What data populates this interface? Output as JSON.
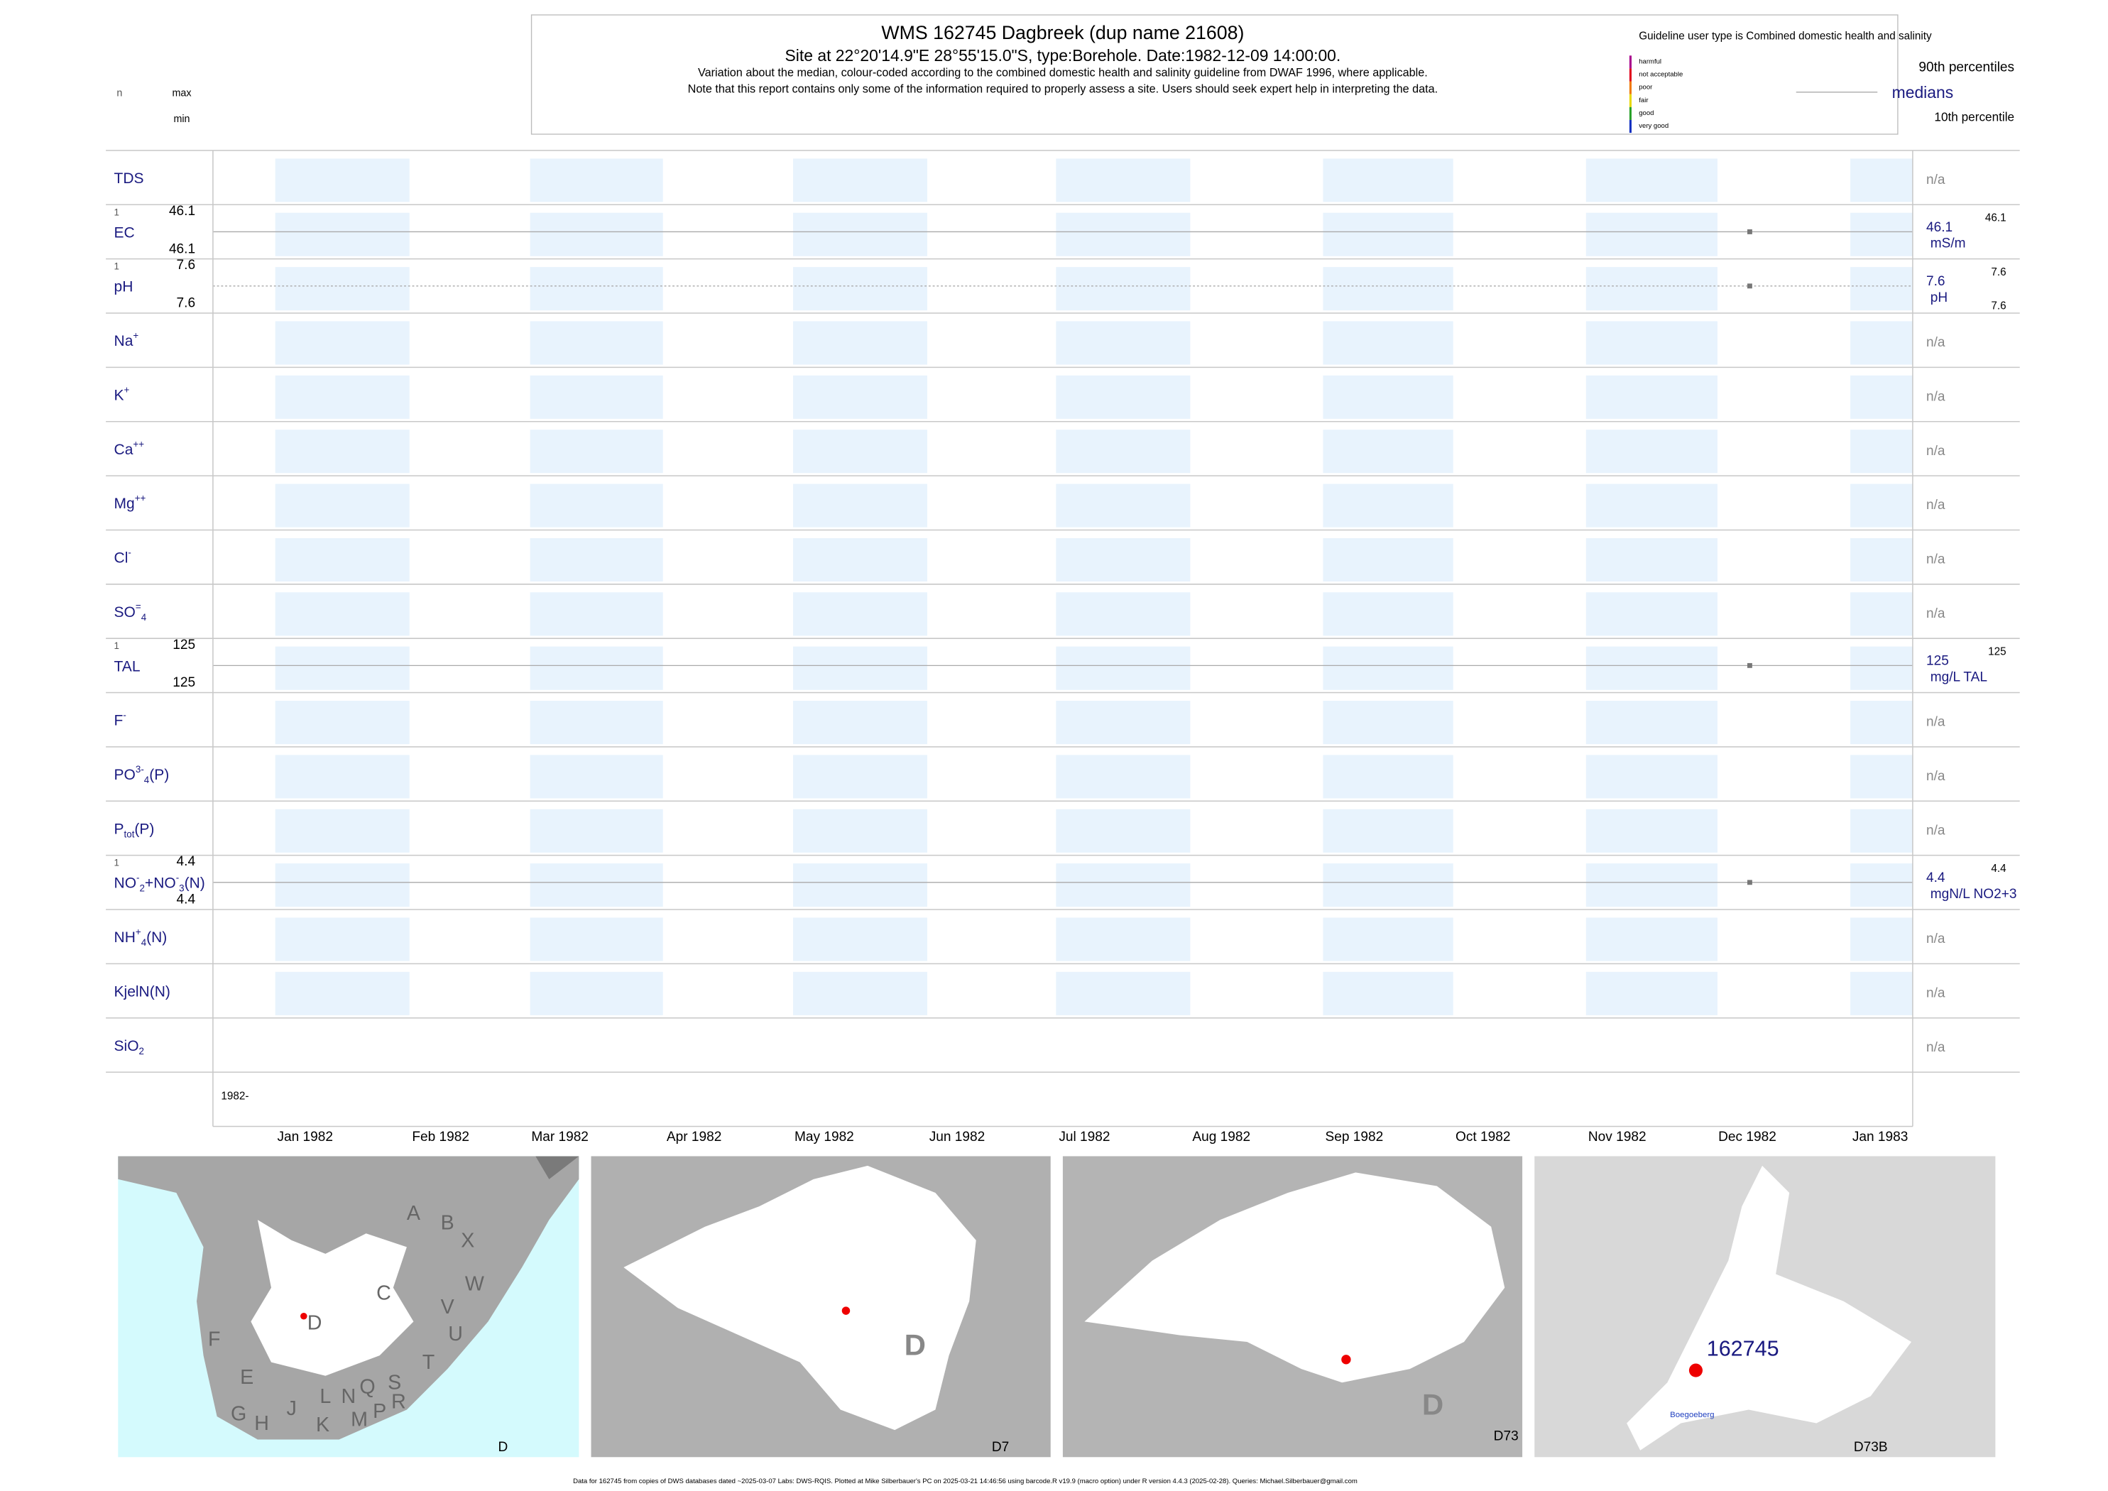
{
  "header": {
    "title": "WMS 162745  Dagbreek (dup name 21608)",
    "subtitle": "Site at 22°20'14.9\"E 28°55'15.0\"S, type:Borehole. Date:1982-12-09 14:00:00.",
    "notes": [
      "Variation about the median,  colour-coded according to the combined domestic health and salinity guideline from DWAF 1996, where applicable.",
      "Note that this report contains only some of the information required to properly assess a site. Users should seek expert help in interpreting the data."
    ]
  },
  "corner": {
    "n": "n",
    "max": "max",
    "min": "min"
  },
  "legend": {
    "guideline": "Guideline user type is Combined domestic health and salinity",
    "classes": [
      {
        "label": "harmful",
        "color": "#a8008c"
      },
      {
        "label": "not acceptable",
        "color": "#e0001b"
      },
      {
        "label": "poor",
        "color": "#f07800"
      },
      {
        "label": "fair",
        "color": "#e8d800"
      },
      {
        "label": "good",
        "color": "#28a028"
      },
      {
        "label": "very good",
        "color": "#1030c0"
      }
    ],
    "p90": "90th percentiles",
    "median": "medians",
    "p10": "10th percentile"
  },
  "rows": [
    {
      "label": [
        {
          "text": "TDS"
        }
      ],
      "na": "n/a"
    },
    {
      "label": [
        {
          "text": "EC"
        }
      ],
      "n": 1,
      "max": 46.1,
      "min": 46.1,
      "median": 46.1,
      "unit": "mS/m",
      "upper": 46.1
    },
    {
      "label": [
        {
          "text": "pH"
        }
      ],
      "n": 1,
      "max": 7.6,
      "min": 7.6,
      "median": 7.6,
      "unit": "pH",
      "upper": 7.6,
      "lower": 7.6
    },
    {
      "label": [
        {
          "text": "Na"
        },
        {
          "sup": "+"
        }
      ],
      "na": "n/a"
    },
    {
      "label": [
        {
          "text": "K"
        },
        {
          "sup": "+"
        }
      ],
      "na": "n/a"
    },
    {
      "label": [
        {
          "text": "Ca"
        },
        {
          "sup": "++"
        }
      ],
      "na": "n/a"
    },
    {
      "label": [
        {
          "text": "Mg"
        },
        {
          "sup": "++"
        }
      ],
      "na": "n/a"
    },
    {
      "label": [
        {
          "text": "Cl"
        },
        {
          "sup": "-"
        }
      ],
      "na": "n/a"
    },
    {
      "label": [
        {
          "text": "SO"
        },
        {
          "sup": "="
        },
        {
          "sub": "4"
        }
      ],
      "na": "n/a"
    },
    {
      "label": [
        {
          "text": "TAL"
        }
      ],
      "n": 1,
      "max": 125,
      "min": 125,
      "median": 125,
      "unit": "mg/L TAL",
      "upper": 125
    },
    {
      "label": [
        {
          "text": "F"
        },
        {
          "sup": "-"
        }
      ],
      "na": "n/a"
    },
    {
      "label": [
        {
          "text": "PO"
        },
        {
          "sup": "3-"
        },
        {
          "sub": "4"
        },
        {
          "text": "(P)"
        }
      ],
      "na": "n/a"
    },
    {
      "label": [
        {
          "text": "P"
        },
        {
          "sub": "tot"
        },
        {
          "text": "(P)"
        }
      ],
      "na": "n/a"
    },
    {
      "label": [
        {
          "text": "NO"
        },
        {
          "sup": "-"
        },
        {
          "sub": "2"
        },
        {
          "text": "+NO"
        },
        {
          "sup": "-"
        },
        {
          "sub": "3"
        },
        {
          "text": "(N)"
        }
      ],
      "n": 1,
      "max": 4.4,
      "min": 4.4,
      "median": 4.4,
      "unit": "mgN/L NO2+3",
      "upper": 4.4
    },
    {
      "label": [
        {
          "text": "NH"
        },
        {
          "sup": "+"
        },
        {
          "sub": "4"
        },
        {
          "text": "(N)"
        }
      ],
      "na": "n/a"
    },
    {
      "label": [
        {
          "text": "KjelN(N)"
        }
      ],
      "na": "n/a"
    },
    {
      "label": [
        {
          "text": "SiO"
        },
        {
          "sub": "2"
        }
      ],
      "na": "n/a"
    }
  ],
  "year_label": "1982-",
  "months": [
    "Jan 1982",
    "Feb 1982",
    "Mar 1982",
    "Apr 1982",
    "May 1982",
    "Jun 1982",
    "Jul 1982",
    "Aug 1982",
    "Sep 1982",
    "Oct 1982",
    "Nov 1982",
    "Dec 1982",
    "Jan 1983"
  ],
  "maps": [
    {
      "code": "D",
      "labels": [
        "A",
        "B",
        "X",
        "W",
        "C",
        "D",
        "V",
        "U",
        "F",
        "T",
        "E",
        "S",
        "Q",
        "R",
        "L",
        "N",
        "J",
        "G",
        "H",
        "K",
        "M",
        "P"
      ]
    },
    {
      "code": "D7",
      "labels": [
        "D"
      ]
    },
    {
      "code": "D73",
      "labels": [
        "D"
      ]
    },
    {
      "code": "D73B",
      "labels": [
        "162745",
        "Boegoeberg"
      ]
    }
  ],
  "footer": "Data for 162745 from copies of DWS databases dated ~2025-03-07 Labs: DWS-RQIS. Plotted at Mike Silberbauer's PC on 2025-03-21 14:46:56 using barcode.R v19.9 (macro option) under R version 4.4.3 (2025-02-28). Queries: Michael.Silberbauer@gmail.com"
}
